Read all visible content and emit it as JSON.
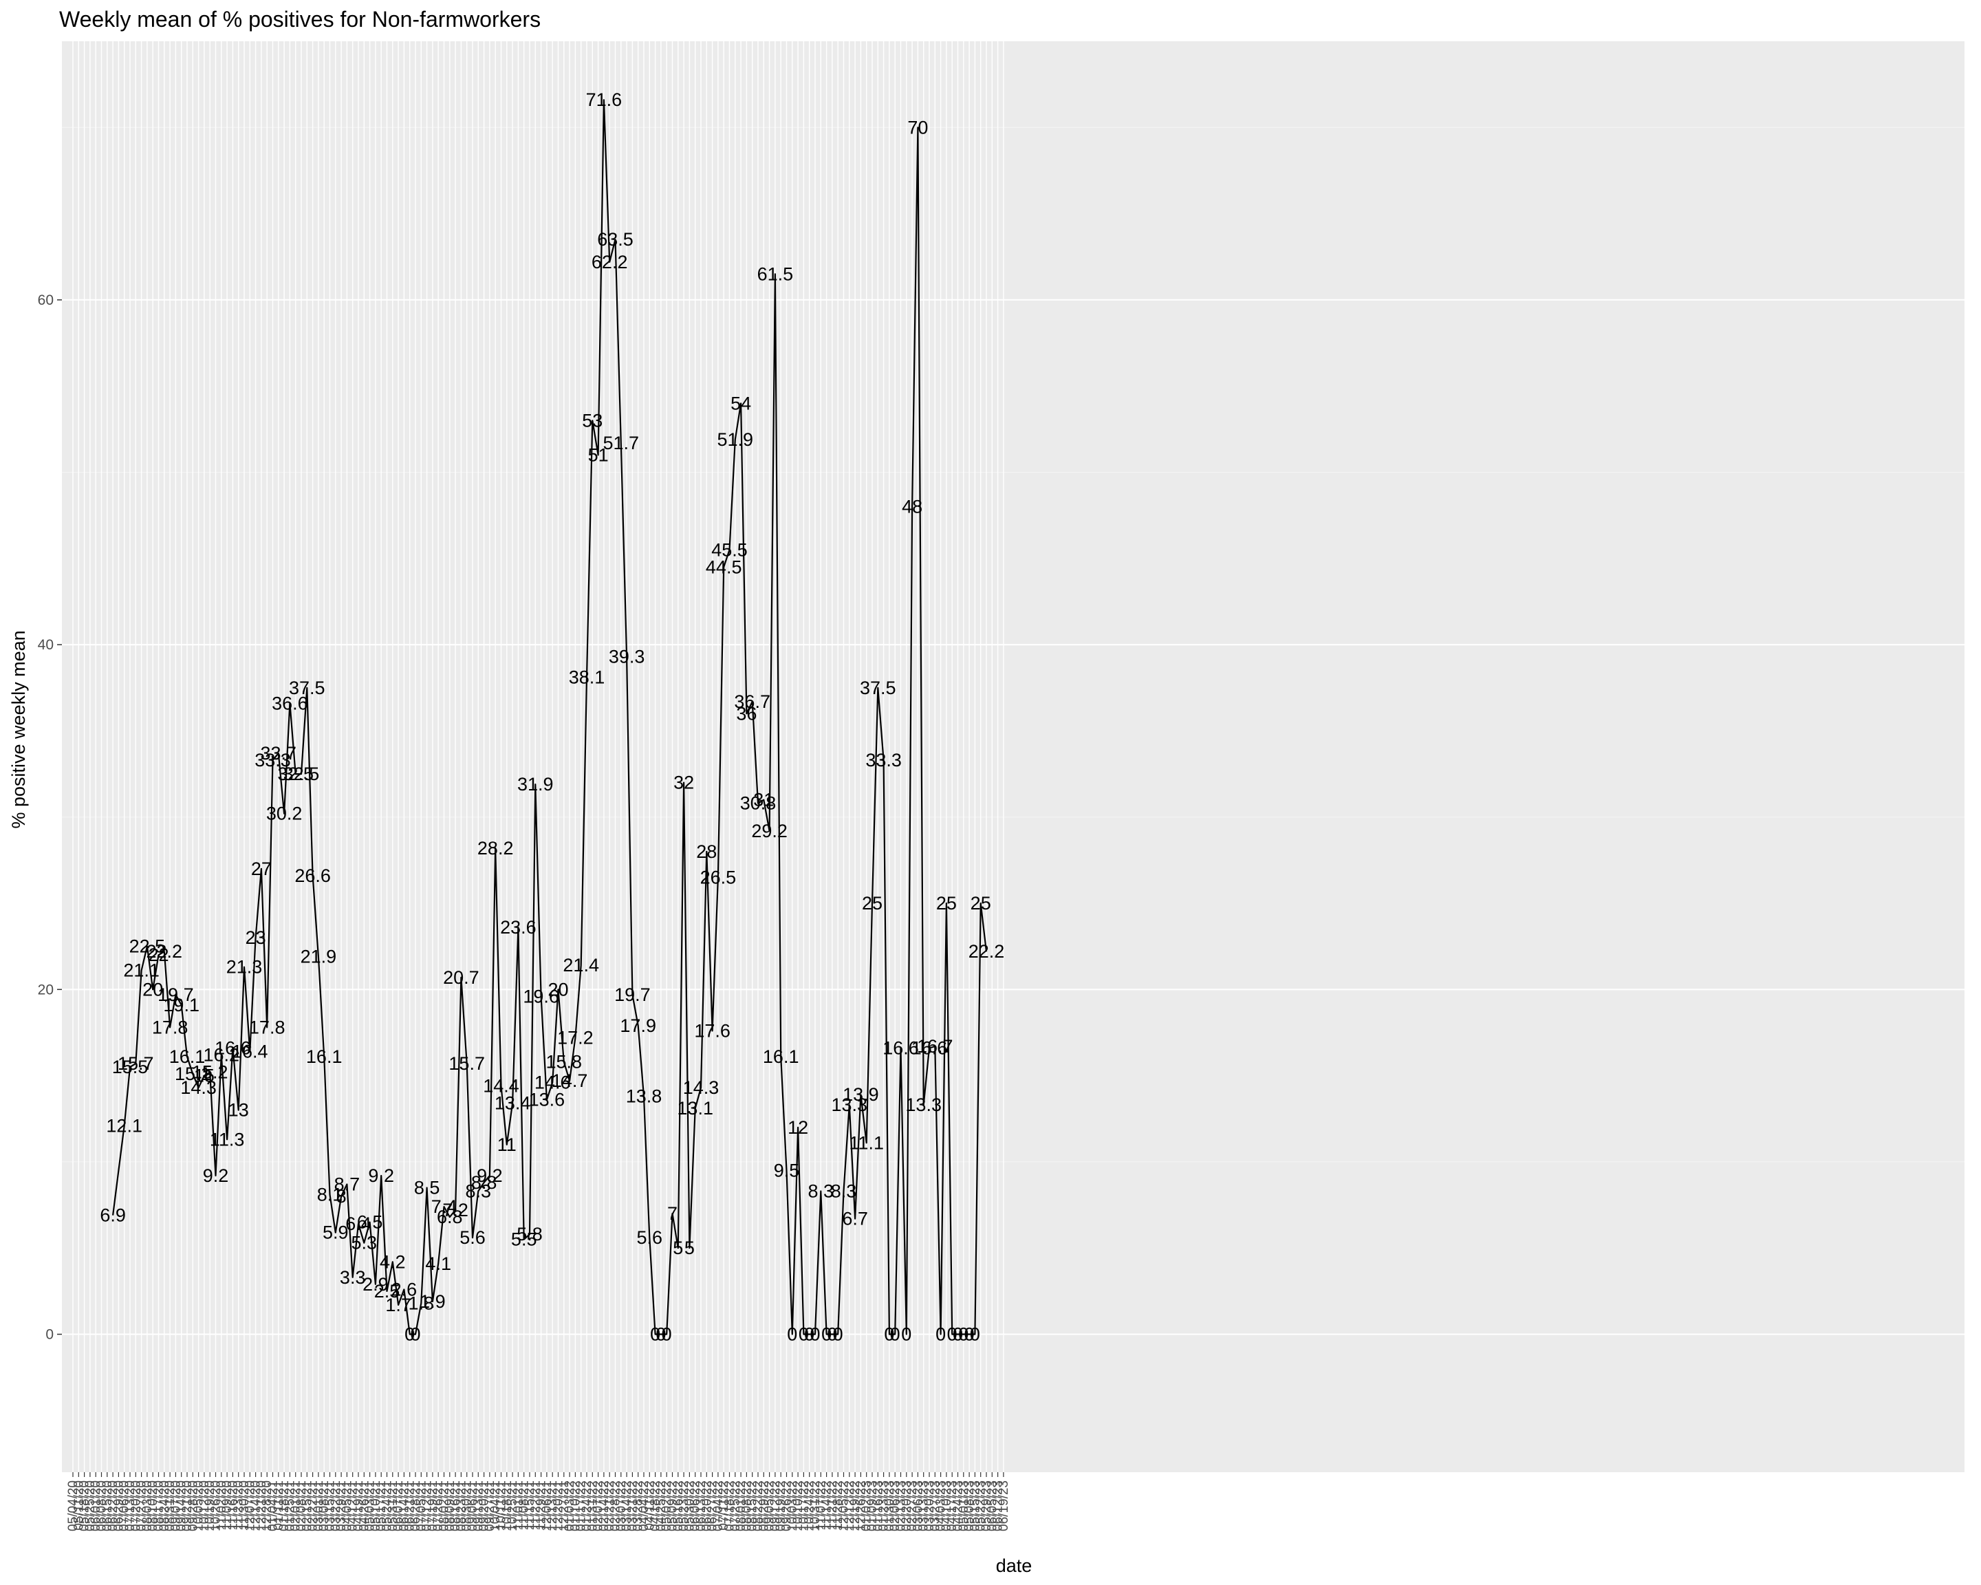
{
  "chart_data": {
    "type": "line",
    "title": "Weekly mean of % positives for Non-farmworkers",
    "xlabel": "date",
    "ylabel": "% positive weekly mean",
    "ylim": [
      -8,
      75
    ],
    "y_ticks": [
      0,
      20,
      40,
      60
    ],
    "grid": true,
    "x_tick_labels": [
      "05/04/20",
      "05/11/20",
      "05/18/20",
      "05/25/20",
      "06/01/20",
      "06/08/20",
      "06/15/20",
      "06/22/20",
      "06/29/20",
      "07/06/20",
      "07/13/20",
      "07/20/20",
      "07/27/20",
      "08/03/20",
      "08/10/20",
      "08/17/20",
      "08/24/20",
      "08/31/20",
      "09/07/20",
      "09/14/20",
      "09/21/20",
      "09/28/20",
      "10/05/20",
      "10/12/20",
      "10/19/20",
      "10/26/20",
      "11/02/20",
      "11/09/20",
      "11/16/20",
      "11/23/20",
      "11/30/20",
      "12/07/20",
      "12/14/20",
      "12/21/20",
      "12/28/20",
      "01/04/21",
      "01/11/21",
      "01/18/21",
      "01/25/21",
      "02/01/21",
      "02/08/21",
      "02/15/21",
      "02/22/21",
      "03/01/21",
      "03/08/21",
      "03/15/21",
      "03/22/21",
      "03/29/21",
      "04/05/21",
      "04/12/21",
      "04/19/21",
      "04/26/21",
      "05/03/21",
      "05/10/21",
      "05/17/21",
      "05/24/21",
      "05/31/21",
      "06/07/21",
      "06/14/21",
      "06/21/21",
      "06/28/21",
      "07/05/21",
      "07/12/21",
      "07/19/21",
      "07/26/21",
      "08/02/21",
      "08/09/21",
      "08/16/21",
      "08/23/21",
      "08/30/21",
      "09/06/21",
      "09/13/21",
      "09/20/21",
      "09/27/21",
      "10/04/21",
      "10/11/21",
      "10/18/21",
      "10/25/21",
      "11/01/21",
      "11/08/21",
      "11/15/21",
      "11/22/21",
      "11/29/21",
      "12/06/21",
      "12/13/21",
      "12/20/21",
      "12/27/21",
      "01/03/22",
      "01/10/22",
      "01/17/22",
      "01/24/22",
      "01/31/22",
      "02/07/22",
      "02/14/22",
      "02/21/22",
      "02/28/22",
      "03/07/22",
      "03/14/22",
      "03/21/22",
      "03/28/22",
      "04/04/22",
      "04/11/22",
      "04/18/22",
      "04/25/22",
      "05/02/22",
      "05/09/22",
      "05/16/22",
      "05/23/22",
      "05/30/22",
      "06/06/22",
      "06/13/22",
      "06/20/22",
      "06/27/22",
      "07/04/22",
      "07/11/22",
      "07/18/22",
      "07/25/22",
      "08/01/22",
      "08/08/22",
      "08/15/22",
      "08/22/22",
      "08/29/22",
      "09/05/22",
      "09/12/22",
      "09/19/22",
      "09/26/22",
      "10/03/22",
      "10/10/22",
      "10/17/22",
      "10/24/22",
      "10/31/22",
      "11/07/22",
      "11/14/22",
      "11/21/22",
      "11/28/22",
      "12/05/22",
      "12/12/22",
      "12/19/22",
      "12/26/22",
      "01/02/23",
      "01/09/23",
      "01/16/23",
      "01/23/23",
      "01/30/23",
      "02/06/23",
      "02/13/23",
      "02/20/23",
      "02/27/23",
      "03/06/23",
      "03/13/23",
      "03/20/23",
      "03/27/23",
      "04/03/23",
      "04/10/23",
      "04/17/23",
      "04/24/23",
      "05/01/23",
      "05/08/23",
      "05/15/23",
      "05/22/23",
      "05/29/23",
      "06/05/23",
      "06/12/23",
      "06/19/23"
    ],
    "points": [
      {
        "x": "06/22/20",
        "y": 6.9,
        "label": "6.9"
      },
      {
        "x": "07/06/20",
        "y": 12.1,
        "label": "12.1"
      },
      {
        "x": "07/13/20",
        "y": 15.5,
        "label": "15.5"
      },
      {
        "x": "07/20/20",
        "y": 15.7,
        "label": "15.7"
      },
      {
        "x": "07/27/20",
        "y": 21.1,
        "label": "21.1"
      },
      {
        "x": "08/03/20",
        "y": 22.5,
        "label": "22.5"
      },
      {
        "x": "08/10/20",
        "y": 20,
        "label": "20"
      },
      {
        "x": "08/17/20",
        "y": 22,
        "label": "22"
      },
      {
        "x": "08/24/20",
        "y": 22.2,
        "label": "22.2"
      },
      {
        "x": "08/31/20",
        "y": 17.8,
        "label": "17.8"
      },
      {
        "x": "09/07/20",
        "y": 19.7,
        "label": "19.7"
      },
      {
        "x": "09/14/20",
        "y": 19.1,
        "label": "19.1"
      },
      {
        "x": "09/21/20",
        "y": 16.1,
        "label": "16.1"
      },
      {
        "x": "09/28/20",
        "y": 15.1,
        "label": "15.1"
      },
      {
        "x": "10/05/20",
        "y": 14.3,
        "label": "14.3"
      },
      {
        "x": "10/12/20",
        "y": 15,
        "label": "15"
      },
      {
        "x": "10/19/20",
        "y": 15.2,
        "label": "15.2"
      },
      {
        "x": "10/26/20",
        "y": 9.2,
        "label": "9.2"
      },
      {
        "x": "11/02/20",
        "y": 16.2,
        "label": "16.2"
      },
      {
        "x": "11/09/20",
        "y": 11.3,
        "label": "11.3"
      },
      {
        "x": "11/16/20",
        "y": 16.6,
        "label": "16.6"
      },
      {
        "x": "11/23/20",
        "y": 13,
        "label": "13"
      },
      {
        "x": "11/30/20",
        "y": 21.3,
        "label": "21.3"
      },
      {
        "x": "12/07/20",
        "y": 16.4,
        "label": "16.4"
      },
      {
        "x": "12/14/20",
        "y": 23,
        "label": "23"
      },
      {
        "x": "12/21/20",
        "y": 27,
        "label": "27"
      },
      {
        "x": "12/28/20",
        "y": 17.8,
        "label": "17.8"
      },
      {
        "x": "01/04/21",
        "y": 33.3,
        "label": "33.3"
      },
      {
        "x": "01/11/21",
        "y": 33.7,
        "label": "33.7"
      },
      {
        "x": "01/18/21",
        "y": 30.2,
        "label": "30.2"
      },
      {
        "x": "01/25/21",
        "y": 36.6,
        "label": "36.6"
      },
      {
        "x": "02/01/21",
        "y": 32.5,
        "label": "32.5"
      },
      {
        "x": "02/08/21",
        "y": 32.5,
        "label": "32.5"
      },
      {
        "x": "02/15/21",
        "y": 37.5,
        "label": "37.5"
      },
      {
        "x": "02/22/21",
        "y": 26.6,
        "label": "26.6"
      },
      {
        "x": "03/01/21",
        "y": 21.9,
        "label": "21.9"
      },
      {
        "x": "03/08/21",
        "y": 16.1,
        "label": "16.1"
      },
      {
        "x": "03/15/21",
        "y": 8.1,
        "label": "8.1"
      },
      {
        "x": "03/22/21",
        "y": 5.9,
        "label": "5.9"
      },
      {
        "x": "03/29/21",
        "y": 8,
        "label": "8"
      },
      {
        "x": "04/05/21",
        "y": 8.7,
        "label": "8.7"
      },
      {
        "x": "04/12/21",
        "y": 3.3,
        "label": "3.3"
      },
      {
        "x": "04/19/21",
        "y": 6.4,
        "label": "6.4"
      },
      {
        "x": "04/26/21",
        "y": 5.3,
        "label": "5.3"
      },
      {
        "x": "05/03/21",
        "y": 6.5,
        "label": "6.5"
      },
      {
        "x": "05/10/21",
        "y": 2.9,
        "label": "2.9"
      },
      {
        "x": "05/17/21",
        "y": 9.2,
        "label": "9.2"
      },
      {
        "x": "05/24/21",
        "y": 2.5,
        "label": "2.5"
      },
      {
        "x": "05/31/21",
        "y": 4.2,
        "label": "4.2"
      },
      {
        "x": "06/07/21",
        "y": 1.7,
        "label": "1.7"
      },
      {
        "x": "06/14/21",
        "y": 2.6,
        "label": "2.6"
      },
      {
        "x": "06/21/21",
        "y": 0,
        "label": "0"
      },
      {
        "x": "06/28/21",
        "y": 0,
        "label": "0"
      },
      {
        "x": "07/05/21",
        "y": 1.8,
        "label": "1.8"
      },
      {
        "x": "07/12/21",
        "y": 8.5,
        "label": "8.5"
      },
      {
        "x": "07/19/21",
        "y": 1.9,
        "label": "1.9"
      },
      {
        "x": "07/26/21",
        "y": 4.1,
        "label": "4.1"
      },
      {
        "x": "08/02/21",
        "y": 7.4,
        "label": "7.4"
      },
      {
        "x": "08/09/21",
        "y": 6.8,
        "label": "6.8"
      },
      {
        "x": "08/16/21",
        "y": 7.2,
        "label": "7.2"
      },
      {
        "x": "08/23/21",
        "y": 20.7,
        "label": "20.7"
      },
      {
        "x": "08/30/21",
        "y": 15.7,
        "label": "15.7"
      },
      {
        "x": "09/06/21",
        "y": 5.6,
        "label": "5.6"
      },
      {
        "x": "09/13/21",
        "y": 8.3,
        "label": "8.3"
      },
      {
        "x": "09/20/21",
        "y": 8.8,
        "label": "8.8"
      },
      {
        "x": "09/27/21",
        "y": 9.2,
        "label": "9.2"
      },
      {
        "x": "10/04/21",
        "y": 28.2,
        "label": "28.2"
      },
      {
        "x": "10/11/21",
        "y": 14.4,
        "label": "14.4"
      },
      {
        "x": "10/18/21",
        "y": 11,
        "label": "11"
      },
      {
        "x": "10/25/21",
        "y": 13.4,
        "label": "13.4"
      },
      {
        "x": "11/01/21",
        "y": 23.6,
        "label": "23.6"
      },
      {
        "x": "11/08/21",
        "y": 5.5,
        "label": "5.5"
      },
      {
        "x": "11/15/21",
        "y": 5.8,
        "label": "5.8"
      },
      {
        "x": "11/22/21",
        "y": 31.9,
        "label": "31.9"
      },
      {
        "x": "11/29/21",
        "y": 19.6,
        "label": "19.6"
      },
      {
        "x": "12/06/21",
        "y": 13.6,
        "label": "13.6"
      },
      {
        "x": "12/13/21",
        "y": 14.6,
        "label": "14.6"
      },
      {
        "x": "12/20/21",
        "y": 20,
        "label": "20"
      },
      {
        "x": "12/27/21",
        "y": 15.8,
        "label": "15.8"
      },
      {
        "x": "01/03/22",
        "y": 14.7,
        "label": "14.7"
      },
      {
        "x": "01/10/22",
        "y": 17.2,
        "label": "17.2"
      },
      {
        "x": "01/17/22",
        "y": 21.4,
        "label": "21.4"
      },
      {
        "x": "01/24/22",
        "y": 38.1,
        "label": "38.1"
      },
      {
        "x": "01/31/22",
        "y": 53,
        "label": "53"
      },
      {
        "x": "02/07/22",
        "y": 51,
        "label": "51"
      },
      {
        "x": "02/14/22",
        "y": 71.6,
        "label": "71.6"
      },
      {
        "x": "02/21/22",
        "y": 62.2,
        "label": "62.2"
      },
      {
        "x": "02/28/22",
        "y": 63.5,
        "label": "63.5"
      },
      {
        "x": "03/07/22",
        "y": 51.7,
        "label": "51.7"
      },
      {
        "x": "03/14/22",
        "y": 39.3,
        "label": "39.3"
      },
      {
        "x": "03/21/22",
        "y": 19.7,
        "label": "19.7"
      },
      {
        "x": "03/28/22",
        "y": 17.9,
        "label": "17.9"
      },
      {
        "x": "04/04/22",
        "y": 13.8,
        "label": "13.8"
      },
      {
        "x": "04/11/22",
        "y": 5.6,
        "label": "5.6"
      },
      {
        "x": "04/18/22",
        "y": 0,
        "label": "0"
      },
      {
        "x": "04/25/22",
        "y": 0,
        "label": "0"
      },
      {
        "x": "05/02/22",
        "y": 0,
        "label": "0"
      },
      {
        "x": "05/09/22",
        "y": 7,
        "label": "7"
      },
      {
        "x": "05/16/22",
        "y": 5,
        "label": "5"
      },
      {
        "x": "05/23/22",
        "y": 32,
        "label": "32"
      },
      {
        "x": "05/30/22",
        "y": 5,
        "label": "5"
      },
      {
        "x": "06/06/22",
        "y": 13.1,
        "label": "13.1"
      },
      {
        "x": "06/13/22",
        "y": 14.3,
        "label": "14.3"
      },
      {
        "x": "06/20/22",
        "y": 28,
        "label": "28"
      },
      {
        "x": "06/27/22",
        "y": 17.6,
        "label": "17.6"
      },
      {
        "x": "07/04/22",
        "y": 26.5,
        "label": "26.5"
      },
      {
        "x": "07/11/22",
        "y": 44.5,
        "label": "44.5"
      },
      {
        "x": "07/18/22",
        "y": 45.5,
        "label": "45.5"
      },
      {
        "x": "07/25/22",
        "y": 51.9,
        "label": "51.9"
      },
      {
        "x": "08/01/22",
        "y": 54,
        "label": "54"
      },
      {
        "x": "08/08/22",
        "y": 36,
        "label": "36"
      },
      {
        "x": "08/15/22",
        "y": 36.7,
        "label": "36.7"
      },
      {
        "x": "08/22/22",
        "y": 30.8,
        "label": "30.8"
      },
      {
        "x": "08/29/22",
        "y": 31,
        "label": "31"
      },
      {
        "x": "09/05/22",
        "y": 29.2,
        "label": "29.2"
      },
      {
        "x": "09/12/22",
        "y": 61.5,
        "label": "61.5"
      },
      {
        "x": "09/19/22",
        "y": 16.1,
        "label": "16.1"
      },
      {
        "x": "09/26/22",
        "y": 9.5,
        "label": "9.5"
      },
      {
        "x": "10/03/22",
        "y": 0,
        "label": "0"
      },
      {
        "x": "10/10/22",
        "y": 12,
        "label": "12"
      },
      {
        "x": "10/17/22",
        "y": 0,
        "label": "0"
      },
      {
        "x": "10/24/22",
        "y": 0,
        "label": "0"
      },
      {
        "x": "10/31/22",
        "y": 0,
        "label": "0"
      },
      {
        "x": "11/07/22",
        "y": 8.3,
        "label": "8.3"
      },
      {
        "x": "11/14/22",
        "y": 0,
        "label": "0"
      },
      {
        "x": "11/21/22",
        "y": 0,
        "label": "0"
      },
      {
        "x": "11/28/22",
        "y": 0,
        "label": "0"
      },
      {
        "x": "12/05/22",
        "y": 8.3,
        "label": "8.3"
      },
      {
        "x": "12/12/22",
        "y": 13.3,
        "label": "13.3"
      },
      {
        "x": "12/19/22",
        "y": 6.7,
        "label": "6.7"
      },
      {
        "x": "12/26/22",
        "y": 13.9,
        "label": "13.9"
      },
      {
        "x": "01/02/23",
        "y": 11.1,
        "label": "11.1"
      },
      {
        "x": "01/09/23",
        "y": 25,
        "label": "25"
      },
      {
        "x": "01/16/23",
        "y": 37.5,
        "label": "37.5"
      },
      {
        "x": "01/23/23",
        "y": 33.3,
        "label": "33.3"
      },
      {
        "x": "01/30/23",
        "y": 0,
        "label": "0"
      },
      {
        "x": "02/06/23",
        "y": 0,
        "label": "0"
      },
      {
        "x": "02/13/23",
        "y": 16.6,
        "label": "16.6"
      },
      {
        "x": "02/20/23",
        "y": 0,
        "label": "0"
      },
      {
        "x": "02/27/23",
        "y": 48,
        "label": "48"
      },
      {
        "x": "03/06/23",
        "y": 70,
        "label": "70"
      },
      {
        "x": "03/13/23",
        "y": 13.3,
        "label": "13.3"
      },
      {
        "x": "03/20/23",
        "y": 16.6,
        "label": "16.6"
      },
      {
        "x": "03/27/23",
        "y": 16.7,
        "label": "16.7"
      },
      {
        "x": "04/03/23",
        "y": 0,
        "label": "0"
      },
      {
        "x": "04/10/23",
        "y": 25,
        "label": "25"
      },
      {
        "x": "04/17/23",
        "y": 0,
        "label": "0"
      },
      {
        "x": "04/24/23",
        "y": 0,
        "label": "0"
      },
      {
        "x": "05/01/23",
        "y": 0,
        "label": "0"
      },
      {
        "x": "05/08/23",
        "y": 0,
        "label": "0"
      },
      {
        "x": "05/15/23",
        "y": 0,
        "label": "0"
      },
      {
        "x": "05/22/23",
        "y": 25,
        "label": "25"
      },
      {
        "x": "05/29/23",
        "y": 22.2,
        "label": "22.2"
      }
    ]
  }
}
